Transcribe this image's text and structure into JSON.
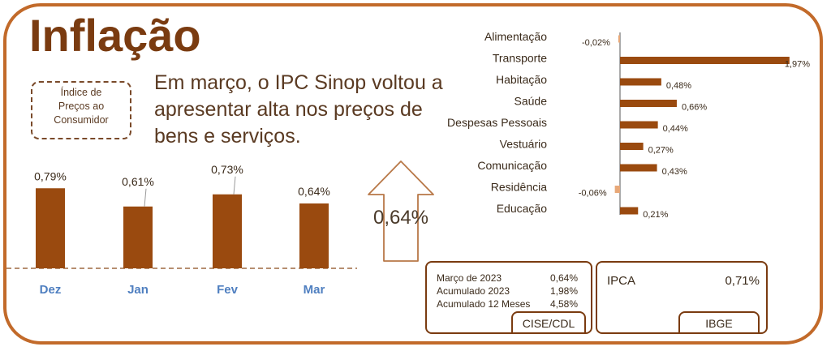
{
  "title": "Inflação",
  "badge": {
    "lines": [
      "Índice de",
      "Preços ao",
      "Consumidor"
    ]
  },
  "headline": {
    "lines": [
      "Em março, o IPC Sinop voltou a",
      "apresentar alta nos preços de",
      "bens e serviços."
    ]
  },
  "arrow_value": "0,64%",
  "colors": {
    "bar": "#9a4a0f",
    "light_bar": "#e8a878",
    "frame": "#c26a2a",
    "month_label": "#4f7fc0"
  },
  "chart_data": [
    {
      "type": "bar",
      "title": "",
      "categories": [
        "Dez",
        "Jan",
        "Fev",
        "Mar"
      ],
      "values": [
        0.79,
        0.61,
        0.73,
        0.64
      ],
      "labels": [
        "0,79%",
        "0,61%",
        "0,73%",
        "0,64%"
      ],
      "xlabel": "",
      "ylabel": "",
      "ylim": [
        0,
        1.0
      ],
      "grid": false
    },
    {
      "type": "bar",
      "orientation": "horizontal",
      "title": "",
      "categories": [
        "Alimentação",
        "Transporte",
        "Habitação",
        "Saúde",
        "Despesas Pessoais",
        "Vestuário",
        "Comunicação",
        "Residência",
        "Educação"
      ],
      "values": [
        -0.02,
        1.97,
        0.48,
        0.66,
        0.44,
        0.27,
        0.43,
        -0.06,
        0.21
      ],
      "labels": [
        "-0,02%",
        "1,97%",
        "0,48%",
        "0,66%",
        "0,44%",
        "0,27%",
        "0,43%",
        "-0,06%",
        "0,21%"
      ],
      "xlabel": "",
      "ylabel": "",
      "xlim": [
        -0.06,
        1.97
      ],
      "grid": false
    }
  ],
  "summary": {
    "rows": [
      {
        "label": "Março de 2023",
        "value": "0,64%"
      },
      {
        "label": "Acumulado 2023",
        "value": "1,98%"
      },
      {
        "label": "Acumulado 12 Meses",
        "value": "4,58%"
      }
    ],
    "source": "CISE/CDL"
  },
  "ipca": {
    "label": "IPCA",
    "value": "0,71%",
    "source": "IBGE"
  }
}
